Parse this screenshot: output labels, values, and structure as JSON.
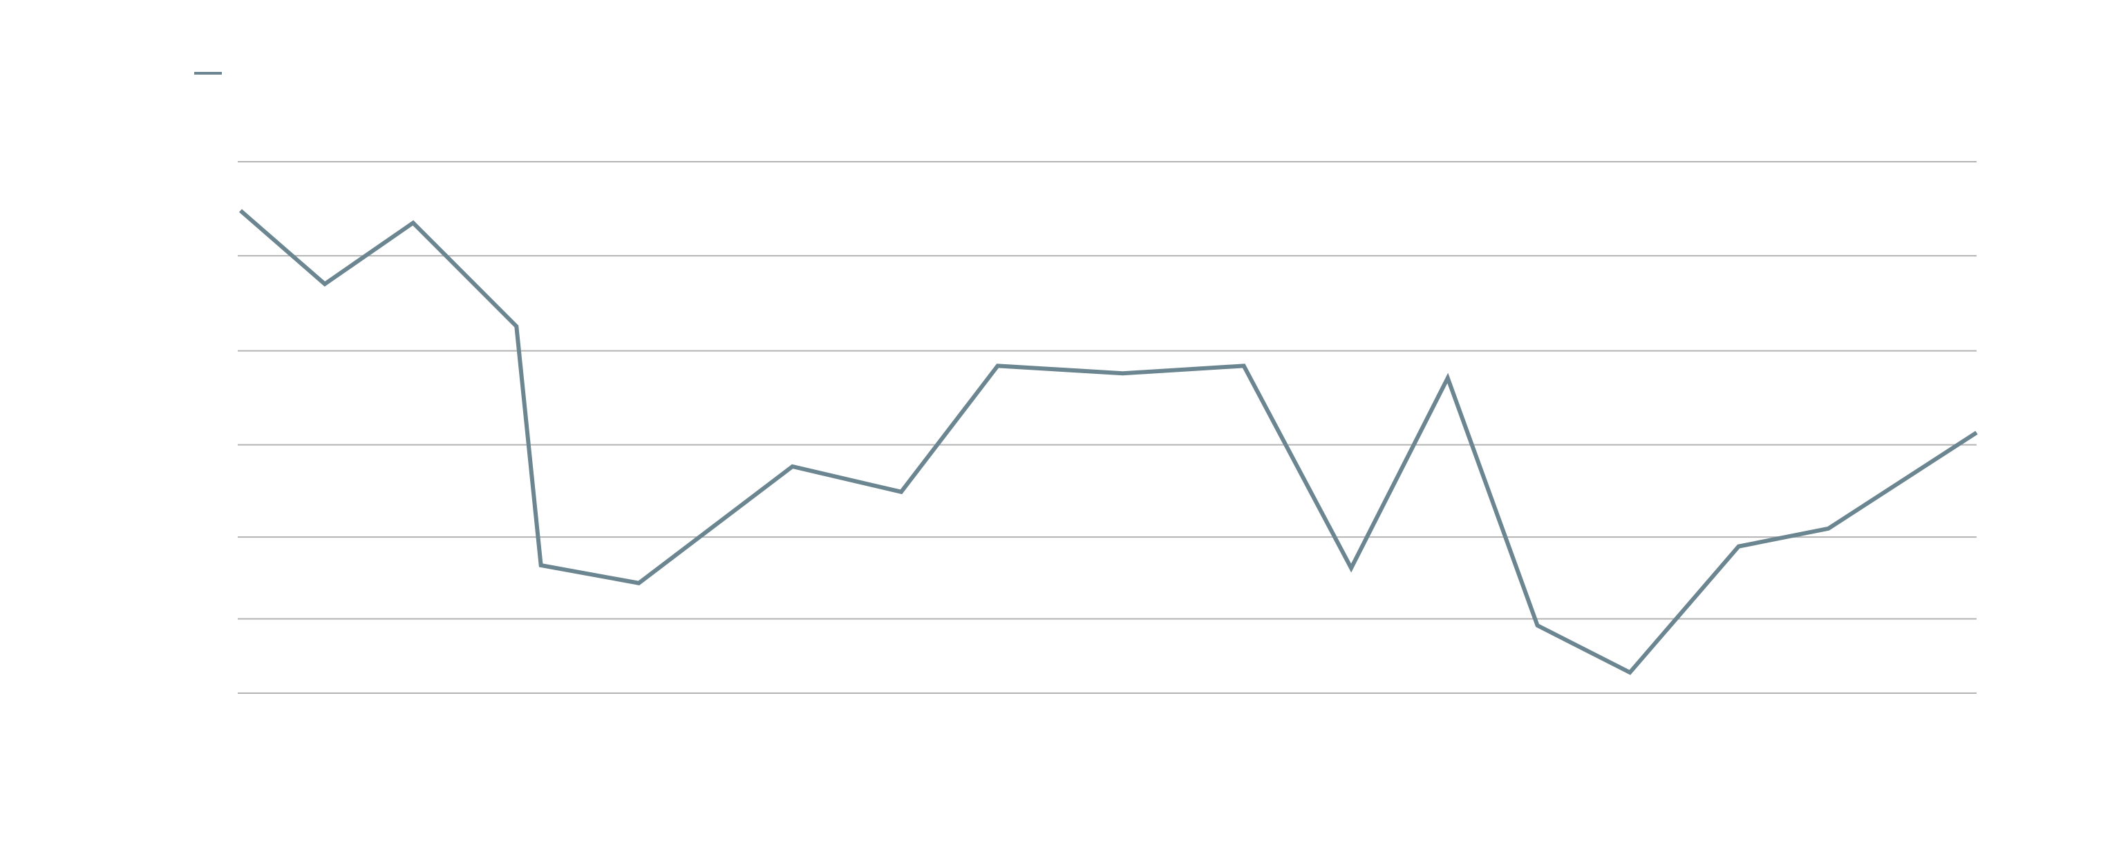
{
  "chart_data": {
    "type": "line",
    "x": [
      177,
      239,
      304,
      380,
      398,
      470,
      583,
      663,
      734,
      826,
      915,
      994,
      1065,
      1131,
      1199,
      1279,
      1345,
      1454
    ],
    "series": [
      {
        "color": "#6b8690",
        "values": [
          5.13,
          4.35,
          5.0,
          3.9,
          1.36,
          1.17,
          2.41,
          2.14,
          3.48,
          3.4,
          3.48,
          1.33,
          3.35,
          0.72,
          0.22,
          1.56,
          1.75,
          2.77
        ]
      }
    ],
    "xlim": [
      175,
      1454
    ],
    "ylim": [
      0,
      5.65
    ],
    "yticks": [
      0,
      0.79,
      1.66,
      2.64,
      3.64,
      4.65,
      5.65
    ],
    "grid": true,
    "legend": "top-left"
  }
}
